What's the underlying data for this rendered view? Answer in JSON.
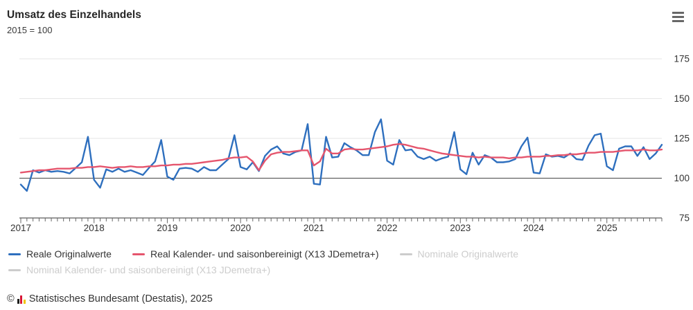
{
  "chart_data": {
    "type": "line",
    "title": "Umsatz des Einzelhandels",
    "subtitle": "2015 = 100",
    "x_unit": "month",
    "x_start": "2017-01",
    "x_end": "2025-10",
    "xticks": [
      "2017",
      "2018",
      "2019",
      "2020",
      "2021",
      "2022",
      "2023",
      "2024",
      "2025"
    ],
    "yticks": [
      75,
      100,
      125,
      150,
      175
    ],
    "ylim": [
      75,
      183
    ],
    "baseline": 100,
    "grid": true,
    "legend_position": "bottom",
    "series": [
      {
        "name": "Reale Originalwerte",
        "color": "#2e6fbe",
        "visible": true,
        "values": [
          96,
          92,
          105,
          103.5,
          105,
          104,
          104.5,
          104,
          103,
          106.5,
          110,
          126,
          99,
          94,
          105.5,
          104,
          106,
          104,
          105,
          103.5,
          102,
          106.5,
          110.5,
          124,
          101,
          99,
          106,
          106.5,
          106,
          104,
          107,
          105,
          105,
          108.5,
          112,
          127,
          107,
          105.5,
          110,
          104.5,
          114,
          118,
          120,
          115.5,
          114.5,
          116.5,
          117.5,
          134,
          96.5,
          96,
          126,
          113,
          113.5,
          122,
          119.5,
          117.5,
          114.5,
          114.5,
          129,
          137,
          111,
          108.5,
          124,
          117.5,
          118,
          113.5,
          112,
          113.5,
          111,
          112.5,
          113.5,
          129,
          105.5,
          102.5,
          116,
          108.5,
          114.5,
          113,
          110,
          110,
          110.5,
          112,
          120,
          125.5,
          103.5,
          103,
          115,
          113.5,
          114,
          113,
          115.5,
          112,
          111.5,
          120.5,
          127,
          128,
          107.5,
          105,
          118.5,
          120,
          120,
          114,
          119.5,
          112,
          115.5,
          121
        ]
      },
      {
        "name": "Real Kalender- und saisonbereinigt (X13 JDemetra+)",
        "color": "#e5556d",
        "visible": true,
        "values": [
          103.5,
          104,
          104.5,
          105,
          105,
          105.5,
          106,
          106,
          106,
          106.5,
          106.5,
          107,
          107,
          107.5,
          107,
          106.5,
          107,
          107,
          107.5,
          107,
          107,
          107.5,
          107.5,
          108,
          108,
          108.5,
          108.5,
          109,
          109,
          109.5,
          110,
          110.5,
          111,
          111.5,
          112.5,
          113,
          113,
          113.5,
          110.5,
          105,
          111,
          115,
          116,
          116.5,
          116.5,
          117,
          117.5,
          117.5,
          108,
          110.5,
          118.5,
          115.5,
          115.5,
          118,
          118.5,
          118,
          118,
          118.5,
          119,
          119.5,
          120,
          121,
          121.5,
          121,
          120,
          119,
          118.5,
          117.5,
          116.5,
          115.5,
          115,
          114.5,
          114,
          113.5,
          113.5,
          113,
          113.5,
          113,
          113,
          113,
          112.5,
          113,
          113,
          113.5,
          113.5,
          113.5,
          114,
          114,
          114.5,
          114.5,
          115,
          115,
          115.5,
          116,
          116,
          116.5,
          116.5,
          116.5,
          117,
          117.5,
          117.5,
          117.5,
          118,
          117.5,
          117.5,
          118
        ]
      },
      {
        "name": "Nominale Originalwerte",
        "color": "#cccccc",
        "visible": false,
        "values": []
      },
      {
        "name": "Nominal Kalender- und saisonbereinigt (X13 JDemetra+)",
        "color": "#cccccc",
        "visible": false,
        "values": []
      }
    ]
  },
  "footer": {
    "copyright": "©",
    "text": "Statistisches Bundesamt (Destatis), 2025"
  }
}
